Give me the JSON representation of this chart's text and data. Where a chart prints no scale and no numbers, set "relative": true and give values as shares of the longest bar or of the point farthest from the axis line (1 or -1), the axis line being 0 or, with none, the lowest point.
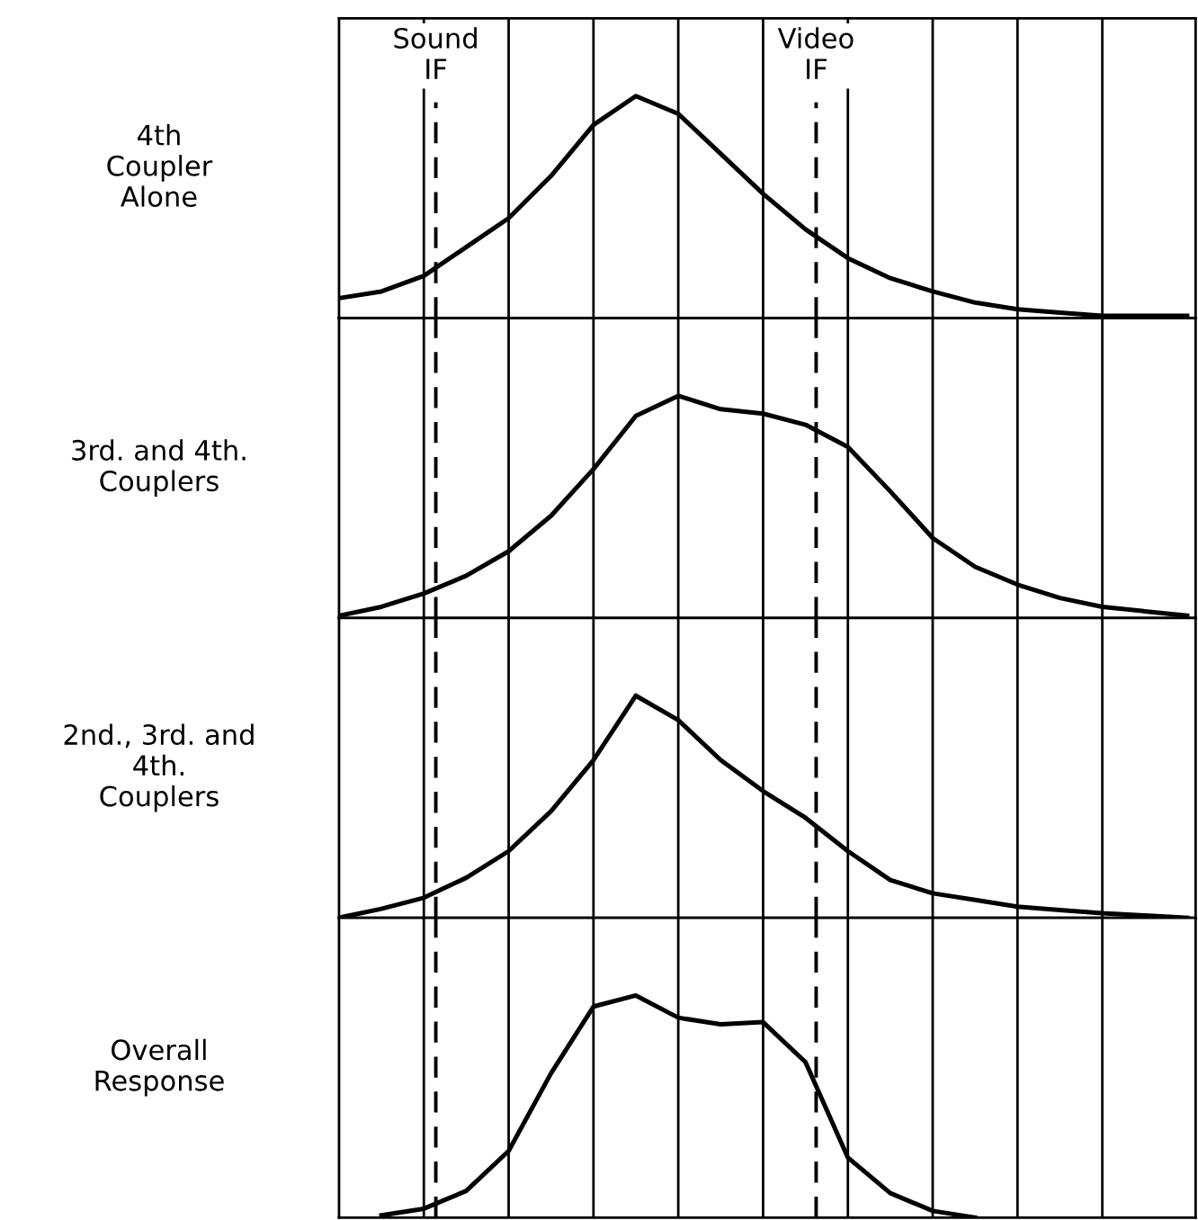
{
  "chart_data": [
    {
      "type": "line",
      "ylabel": "4th\nCoupler\nAlone",
      "relative": true,
      "grid": "x",
      "line_style": "solid",
      "categories": [
        null,
        null,
        null,
        null,
        null,
        null,
        null,
        null,
        null,
        null,
        null,
        null,
        null,
        null,
        null,
        null,
        null,
        null,
        null,
        null,
        null
      ],
      "annotations": [
        "Sound\nIF",
        "Video\nIF"
      ],
      "series": [
        {
          "color": "#000000",
          "values": [
            0.09,
            0.12,
            0.19,
            0.32,
            0.45,
            0.64,
            0.87,
            1.0,
            0.92,
            0.74,
            0.56,
            0.4,
            0.27,
            0.18,
            0.12,
            0.07,
            0.04,
            0.025,
            0.01,
            0.01,
            0.01
          ]
        }
      ]
    },
    {
      "type": "line",
      "ylabel": "3rd. and 4th.\nCouplers",
      "relative": true,
      "grid": "x",
      "line_style": "solid",
      "categories": [
        null,
        null,
        null,
        null,
        null,
        null,
        null,
        null,
        null,
        null,
        null,
        null,
        null,
        null,
        null,
        null,
        null,
        null,
        null,
        null,
        null
      ],
      "series": [
        {
          "color": "#000000",
          "values": [
            0.01,
            0.05,
            0.11,
            0.19,
            0.3,
            0.46,
            0.67,
            0.91,
            1.0,
            0.94,
            0.92,
            0.87,
            0.77,
            0.57,
            0.36,
            0.23,
            0.15,
            0.09,
            0.05,
            0.03,
            0.01
          ]
        }
      ]
    },
    {
      "type": "line",
      "ylabel": "2nd., 3rd. and\n4th.\nCouplers",
      "relative": true,
      "grid": "x",
      "line_style": "solid",
      "categories": [
        null,
        null,
        null,
        null,
        null,
        null,
        null,
        null,
        null,
        null,
        null,
        null,
        null,
        null,
        null,
        null,
        null,
        null,
        null,
        null,
        null
      ],
      "series": [
        {
          "color": "#000000",
          "values": [
            0.0,
            0.04,
            0.09,
            0.18,
            0.3,
            0.48,
            0.71,
            1.0,
            0.89,
            0.71,
            0.57,
            0.45,
            0.3,
            0.17,
            0.11,
            0.08,
            0.05,
            0.035,
            0.02,
            0.01,
            0.0
          ]
        }
      ]
    },
    {
      "type": "line",
      "ylabel": "Overall\nResponse",
      "relative": true,
      "grid": "x",
      "line_style": "solid",
      "categories": [
        null,
        null,
        null,
        null,
        null,
        null,
        null,
        null,
        null,
        null,
        null,
        null,
        null,
        null,
        null,
        null,
        null,
        null,
        null,
        null,
        null
      ],
      "series": [
        {
          "color": "#000000",
          "values": [
            null,
            0.01,
            0.04,
            0.12,
            0.3,
            0.65,
            0.95,
            1.0,
            0.9,
            0.87,
            0.88,
            0.7,
            0.27,
            0.11,
            0.03,
            0.0,
            null,
            null,
            null,
            null,
            null
          ]
        }
      ]
    }
  ]
}
